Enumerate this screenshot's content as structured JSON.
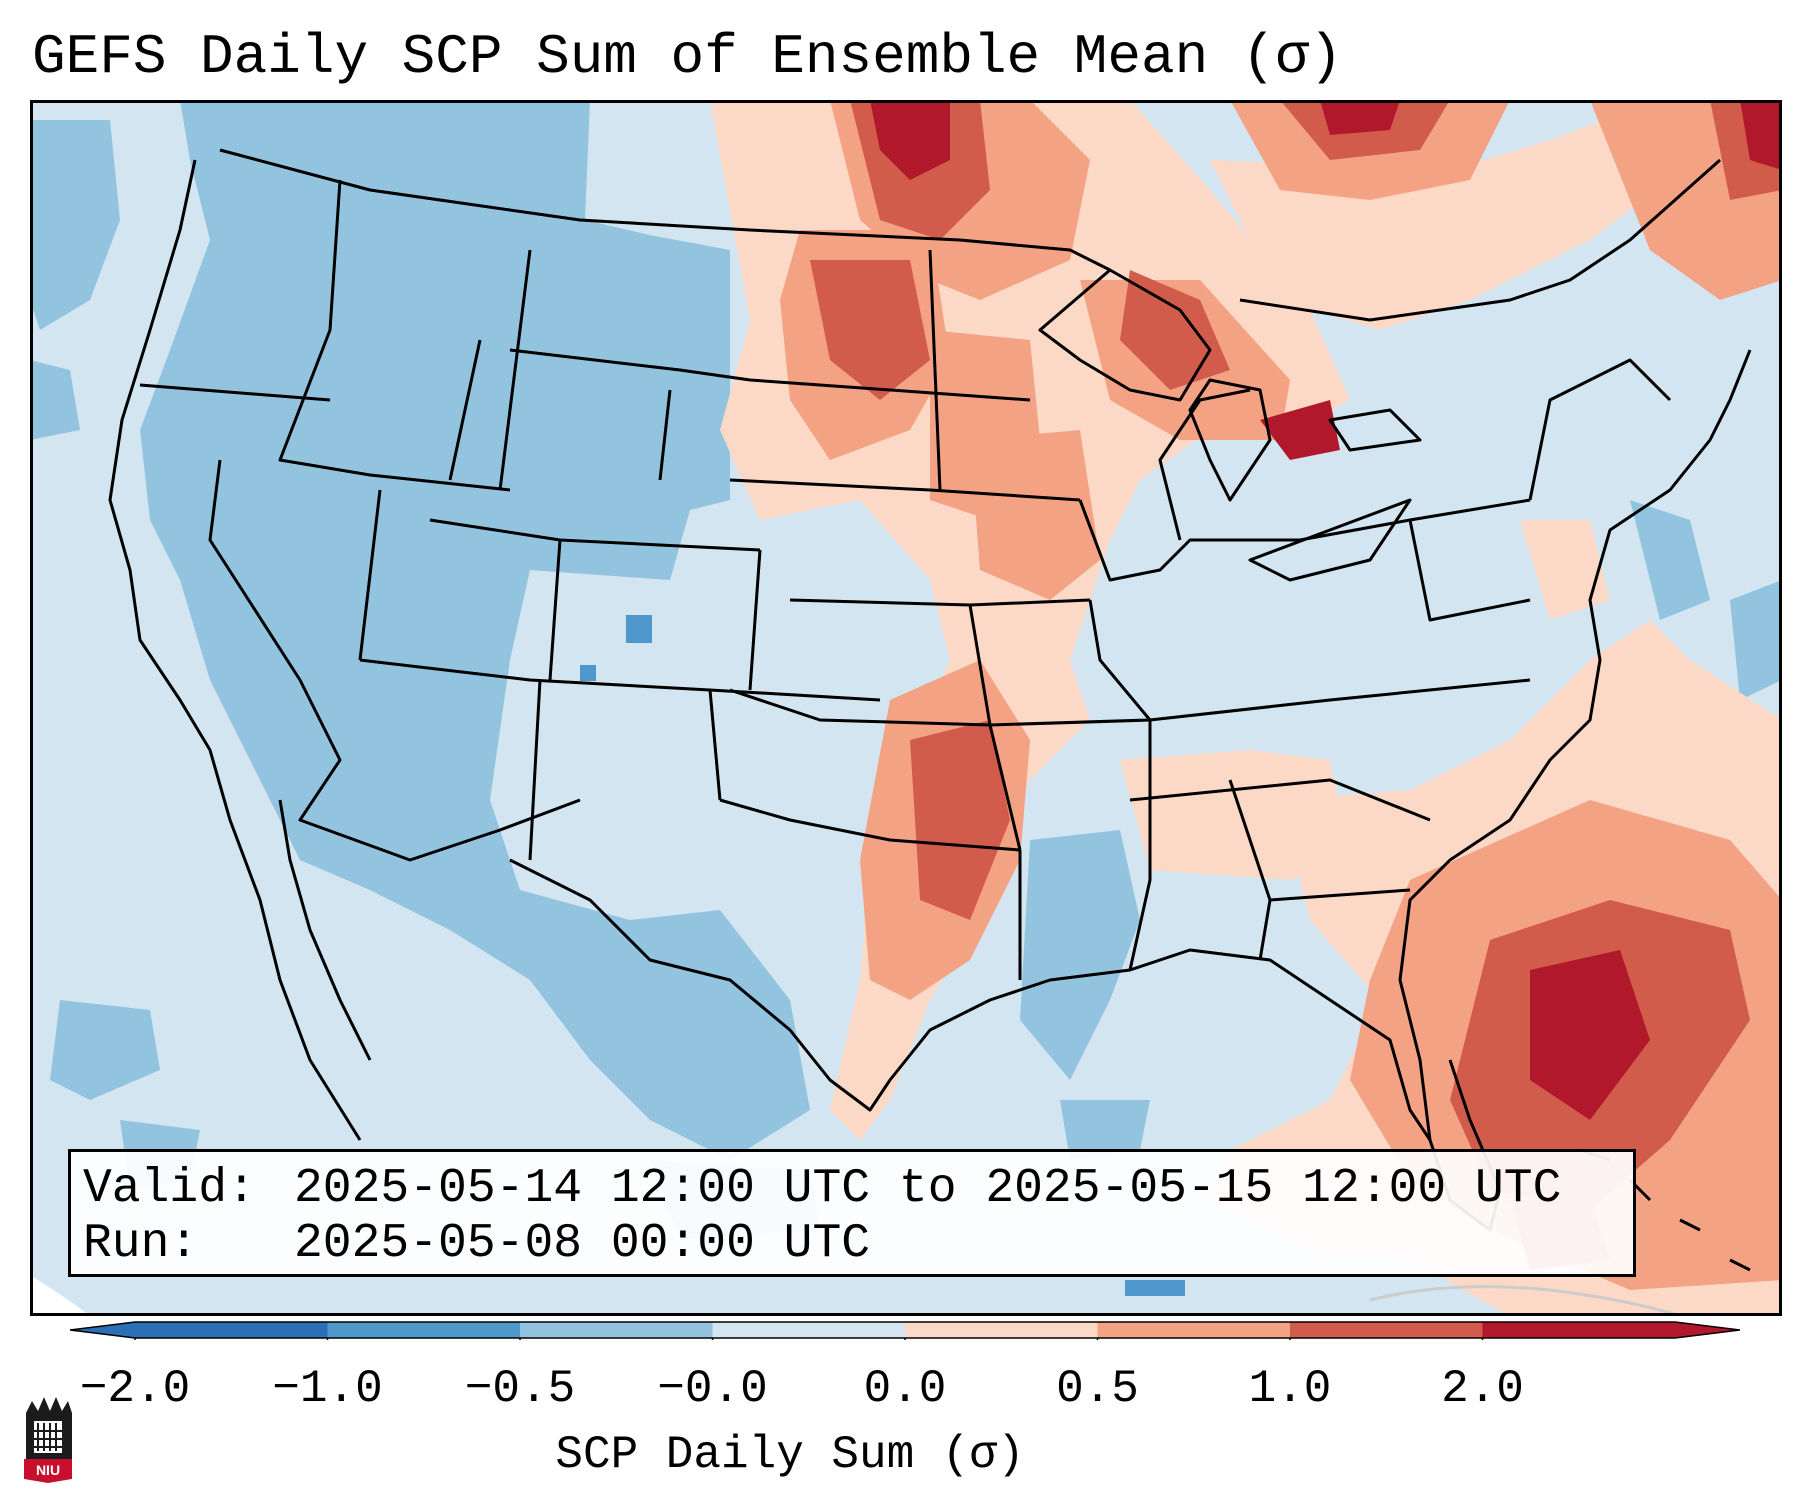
{
  "title": "GEFS Daily SCP Sum of Ensemble Mean (σ)",
  "info": {
    "valid_key": "Valid:",
    "valid_value": "2025-05-14 12:00 UTC to 2025-05-15 12:00 UTC",
    "run_key": "Run:",
    "run_value": "2025-05-08 00:00 UTC"
  },
  "colorbar": {
    "label": "SCP Daily Sum (σ)",
    "ticks": [
      "−2.0",
      "−1.0",
      "−0.5",
      "−0.0",
      "0.0",
      "0.5",
      "1.0",
      "2.0"
    ],
    "colors": [
      "#2b6fb5",
      "#4e98cb",
      "#93c4df",
      "#d2e5f0",
      "#fbd9c6",
      "#f3a283",
      "#d25c4c",
      "#b2182b"
    ],
    "extend": "both"
  },
  "logo": {
    "text": "NIU"
  },
  "map": {
    "region": "Continental United States",
    "colors": {
      "ocean_fill": "#d2e5f0",
      "state_lines": "#000000"
    }
  }
}
